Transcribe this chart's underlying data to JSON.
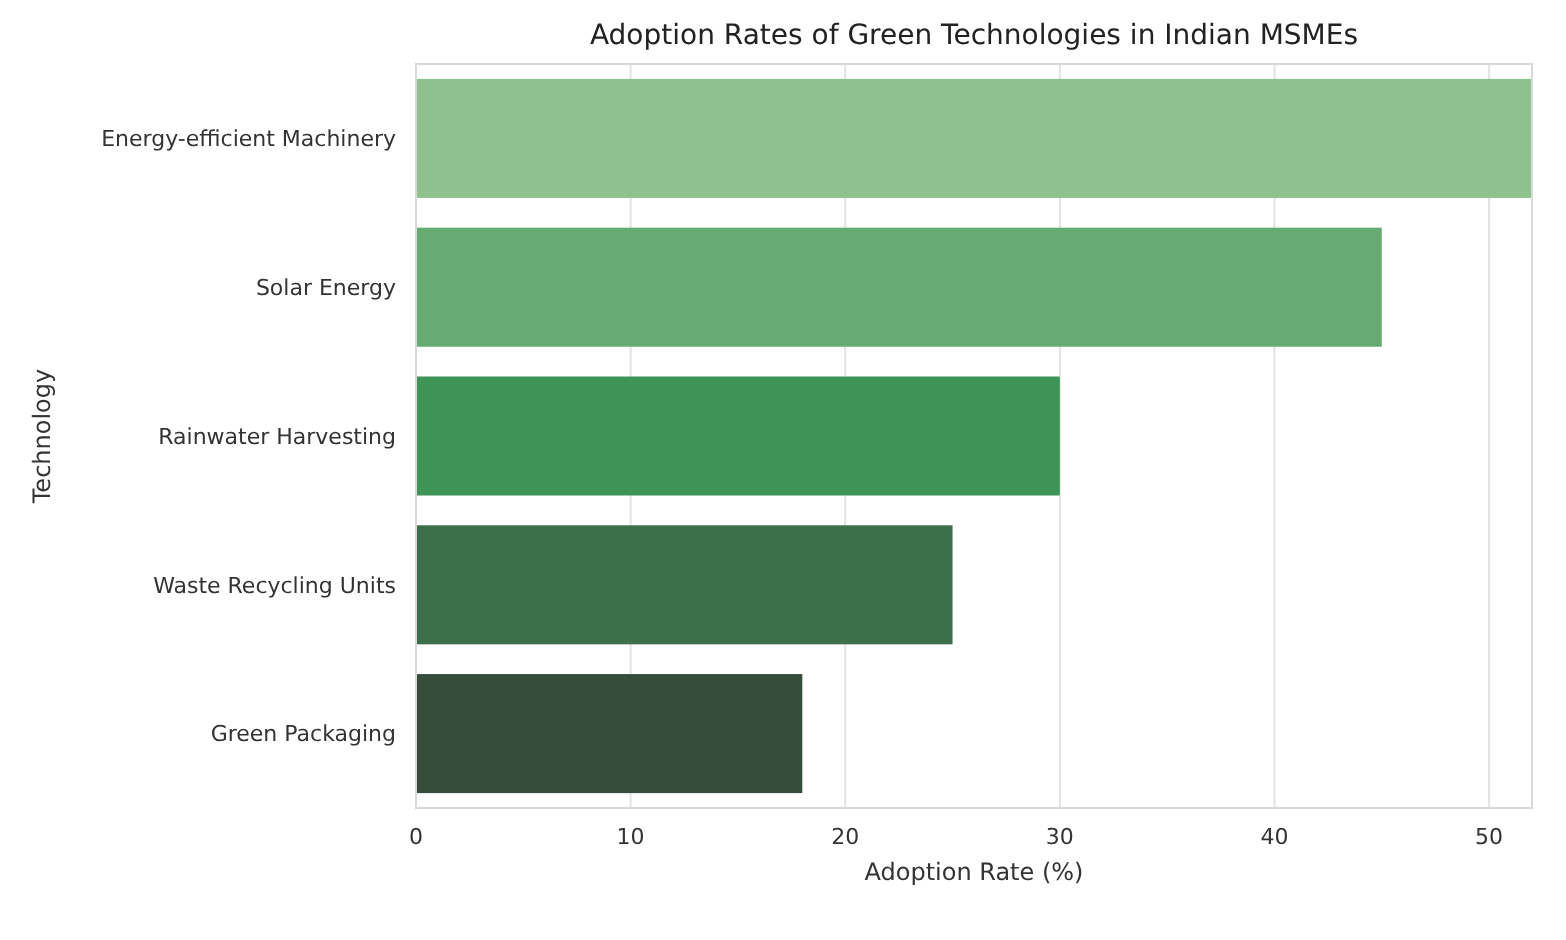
{
  "chart_data": {
    "type": "bar",
    "orientation": "horizontal",
    "title": "Adoption Rates of Green Technologies in Indian MSMEs",
    "xlabel": "Adoption Rate (%)",
    "ylabel": "Technology",
    "categories": [
      "Energy-efficient Machinery",
      "Solar Energy",
      "Rainwater Harvesting",
      "Waste Recycling Units",
      "Green Packaging"
    ],
    "values": [
      52,
      45,
      30,
      25,
      18
    ],
    "colors": [
      "#8fc18e",
      "#66ab72",
      "#3e9457",
      "#3d6f4a",
      "#374d3c"
    ],
    "xlim": [
      0,
      52
    ],
    "xticks": [
      0,
      10,
      20,
      30,
      40,
      50
    ],
    "grid": "x"
  }
}
